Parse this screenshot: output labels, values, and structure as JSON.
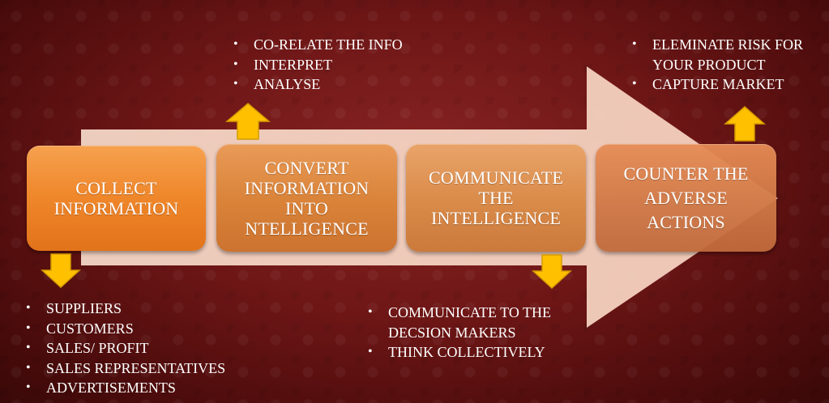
{
  "steps": [
    {
      "label": "COLLECT\nINFORMATION"
    },
    {
      "label": "CONVERT\nINFORMATION\nINTO\nNTELLIGENCE"
    },
    {
      "label": "COMMUNICATE\nTHE\nINTELLIGENCE"
    },
    {
      "label": "COUNTER THE\nADVERSE\nACTIONS"
    }
  ],
  "lists": {
    "convert_above": [
      "CO-RELATE THE INFO",
      "INTERPRET",
      "ANALYSE"
    ],
    "counter_above": [
      "ELEMINATE RISK FOR",
      "YOUR PRODUCT",
      "CAPTURE MARKET"
    ],
    "collect_below": [
      "SUPPLIERS",
      "CUSTOMERS",
      "SALES/ PROFIT",
      "SALES REPRESENTATIVES",
      "ADVERTISEMENTS"
    ],
    "communicate_below": [
      "COMMUNICATE TO THE",
      "DECSION MAKERS",
      "THINK COLLECTIVELY"
    ]
  },
  "colors": {
    "background": "#6e1616",
    "big_arrow": "#f7d8c8",
    "yellow_arrow": "#ffc000"
  }
}
